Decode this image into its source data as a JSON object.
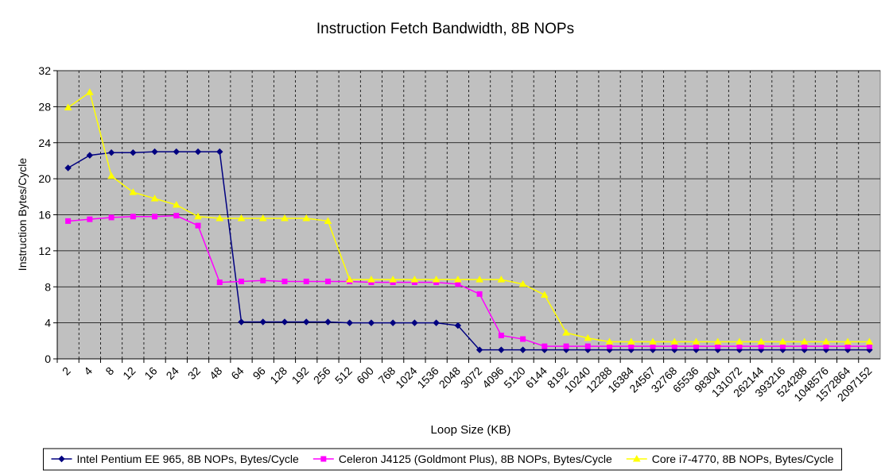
{
  "chart_data": {
    "type": "line",
    "title": "Instruction Fetch Bandwidth, 8B NOPs",
    "xlabel": "Loop Size (KB)",
    "ylabel": "Instruction Bytes/Cycle",
    "categories": [
      "2",
      "4",
      "8",
      "12",
      "16",
      "24",
      "32",
      "48",
      "64",
      "96",
      "128",
      "192",
      "256",
      "512",
      "600",
      "768",
      "1024",
      "1536",
      "2048",
      "3072",
      "4096",
      "5120",
      "6144",
      "8192",
      "10240",
      "12288",
      "16384",
      "24567",
      "32768",
      "65536",
      "98304",
      "131072",
      "262144",
      "393216",
      "524288",
      "1048576",
      "1572864",
      "2097152"
    ],
    "series": [
      {
        "name": "Intel Pentium EE 965, 8B NOPs, Bytes/Cycle",
        "color": "#000080",
        "marker": "diamond",
        "values": [
          21.2,
          22.6,
          22.9,
          22.9,
          23.0,
          23.0,
          23.0,
          23.0,
          4.1,
          4.1,
          4.1,
          4.1,
          4.1,
          4.0,
          4.0,
          4.0,
          4.0,
          4.0,
          3.7,
          1.0,
          1.0,
          1.0,
          1.0,
          1.0,
          1.0,
          1.0,
          1.0,
          1.0,
          1.0,
          1.0,
          1.0,
          1.0,
          1.0,
          1.0,
          1.0,
          1.0,
          1.0,
          1.0
        ]
      },
      {
        "name": "Celeron J4125 (Goldmont Plus), 8B NOPs, Bytes/Cycle",
        "color": "#ff00ff",
        "marker": "square",
        "values": [
          15.3,
          15.5,
          15.7,
          15.8,
          15.8,
          15.9,
          14.8,
          8.5,
          8.6,
          8.7,
          8.6,
          8.6,
          8.6,
          8.6,
          8.5,
          8.5,
          8.5,
          8.5,
          8.3,
          7.2,
          2.6,
          2.2,
          1.4,
          1.4,
          1.4,
          1.4,
          1.4,
          1.4,
          1.4,
          1.4,
          1.4,
          1.4,
          1.4,
          1.4,
          1.4,
          1.4,
          1.4,
          1.4
        ]
      },
      {
        "name": "Core i7-4770, 8B NOPs, Bytes/Cycle",
        "color": "#ffff00",
        "marker": "triangle",
        "values": [
          27.9,
          29.6,
          20.3,
          18.5,
          17.8,
          17.1,
          15.8,
          15.6,
          15.6,
          15.6,
          15.6,
          15.6,
          15.3,
          8.8,
          8.8,
          8.8,
          8.8,
          8.8,
          8.8,
          8.8,
          8.8,
          8.3,
          7.1,
          2.9,
          2.3,
          1.9,
          1.9,
          1.9,
          1.9,
          1.9,
          1.9,
          1.9,
          1.9,
          1.9,
          1.9,
          1.9,
          1.9,
          1.9
        ]
      }
    ],
    "ylim": [
      0,
      32
    ],
    "yticks": [
      0,
      4,
      8,
      12,
      16,
      20,
      24,
      28,
      32
    ],
    "grid": true,
    "legend": "bottom"
  }
}
